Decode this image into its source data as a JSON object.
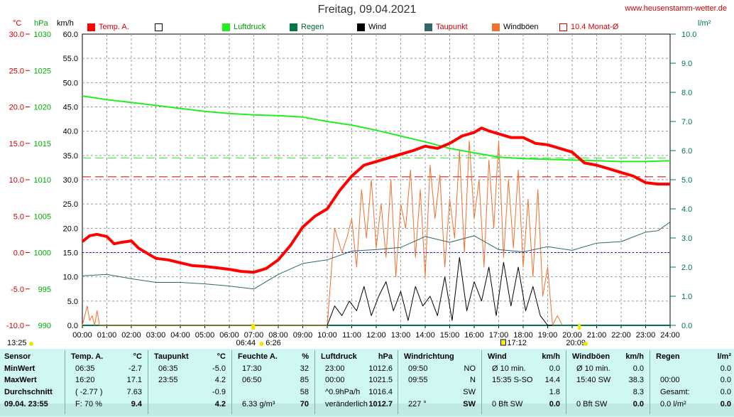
{
  "header": {
    "title": "Freitag, 09.04.2021",
    "site": "www.heusenstamm-wetter.de",
    "units": {
      "temp": "°C",
      "pressure": "hPa",
      "speed": "km/h",
      "rain": "l/m²"
    }
  },
  "legend": [
    {
      "label": "Temp. A.",
      "color": "#ff0000"
    },
    {
      "label": "",
      "color": "#ffffff"
    },
    {
      "label": "Luftdruck",
      "color": "#22ee22"
    },
    {
      "label": "Regen",
      "color": "#007744"
    },
    {
      "label": "Wind",
      "color": "#000000"
    },
    {
      "label": "Taupunkt",
      "color": "#336666"
    },
    {
      "label": "Windböen",
      "color": "#f07030"
    },
    {
      "label": "10.4 Monat-Ø",
      "color": "#d00000"
    }
  ],
  "colors": {
    "temp": "#ff0000",
    "pressure": "#22ee22",
    "rain": "#007744",
    "wind": "#000000",
    "dew": "#336666",
    "gust": "#f07030",
    "monthavg": "#d00000",
    "grid": "#9a9a9a",
    "bg_panel": "#cff7f3"
  },
  "chart_data": {
    "type": "line",
    "x_range": [
      0,
      24
    ],
    "x_tick_labels": [
      "00:00",
      "01:00",
      "02:00",
      "03:00",
      "04:00",
      "05:00",
      "06:00",
      "07:00",
      "08:00",
      "09:00",
      "10:00",
      "11:00",
      "12:00",
      "13:00",
      "14:00",
      "15:00",
      "16:00",
      "17:00",
      "18:00",
      "19:00",
      "20:00",
      "21:00",
      "22:00",
      "23:00",
      "24:00"
    ],
    "axes": {
      "temp_c": {
        "ticks": [
          "30.0",
          "25.0",
          "20.0",
          "15.0",
          "10.0",
          "5.0",
          "0.0",
          "-5.0",
          "-10.0"
        ],
        "range": [
          -10,
          30
        ]
      },
      "pressure_hpa": {
        "ticks": [
          "1030",
          "1025",
          "1020",
          "1015",
          "1010",
          "1005",
          "1000",
          "995",
          "990"
        ],
        "range": [
          990,
          1030
        ]
      },
      "speed_kmh": {
        "ticks": [
          "60.0",
          "55.0",
          "50.0",
          "45.0",
          "40.0",
          "35.0",
          "30.0",
          "25.0",
          "20.0",
          "15.0",
          "10.0",
          "5.0",
          "0.0"
        ],
        "range": [
          0,
          60
        ]
      },
      "rain_lm2": {
        "ticks": [
          "10.0",
          "9.0",
          "8.0",
          "7.0",
          "6.0",
          "5.0",
          "4.0",
          "3.0",
          "2.0",
          "1.0",
          "0.0"
        ],
        "range": [
          0,
          10
        ]
      }
    },
    "series": [
      {
        "name": "Temp. A.",
        "axis": "temp_c",
        "x": [
          0,
          0.3,
          0.6,
          1.0,
          1.3,
          1.6,
          2.0,
          2.3,
          2.7,
          3.0,
          3.5,
          4.0,
          4.5,
          5.0,
          5.5,
          6.0,
          6.5,
          7.0,
          7.5,
          8.0,
          8.5,
          9.0,
          9.5,
          10.0,
          10.5,
          11.0,
          11.5,
          12.0,
          12.5,
          13.0,
          13.5,
          14.0,
          14.5,
          15.0,
          15.5,
          16.0,
          16.3,
          16.6,
          17.0,
          17.5,
          18.0,
          18.5,
          19.0,
          19.5,
          20.0,
          20.5,
          21.0,
          21.5,
          22.0,
          22.5,
          23.0,
          23.5,
          24.0
        ],
        "y": [
          1.5,
          2.3,
          2.5,
          2.2,
          1.2,
          1.4,
          1.6,
          0.6,
          -0.2,
          -0.8,
          -1.0,
          -1.4,
          -1.8,
          -1.9,
          -2.1,
          -2.3,
          -2.6,
          -2.7,
          -2.2,
          -1.0,
          1.0,
          3.5,
          5.0,
          6.0,
          8.5,
          10.5,
          12.0,
          12.5,
          13.0,
          13.5,
          14.0,
          14.6,
          14.3,
          15.0,
          16.0,
          16.5,
          17.1,
          16.7,
          16.3,
          15.8,
          15.8,
          15.0,
          14.8,
          14.3,
          13.8,
          12.3,
          12.0,
          11.5,
          11.0,
          10.5,
          9.6,
          9.4,
          9.4
        ]
      },
      {
        "name": "Luftdruck",
        "axis": "pressure_hpa",
        "x": [
          0,
          1,
          2,
          3,
          4,
          5,
          6,
          7,
          8,
          9,
          10,
          11,
          12,
          13,
          14,
          15,
          16,
          17,
          18,
          19,
          20,
          21,
          22,
          23,
          24
        ],
        "y": [
          1021.5,
          1021.0,
          1020.6,
          1020.2,
          1019.8,
          1019.4,
          1019.1,
          1018.9,
          1018.8,
          1018.6,
          1018.0,
          1017.5,
          1016.8,
          1016.0,
          1015.2,
          1014.3,
          1013.7,
          1013.1,
          1012.9,
          1012.8,
          1012.7,
          1012.6,
          1012.5,
          1012.5,
          1012.6
        ]
      },
      {
        "name": "Taupunkt",
        "axis": "temp_c",
        "x": [
          0,
          1,
          2,
          3,
          4,
          5,
          6,
          7,
          8,
          9,
          10,
          11,
          12,
          13,
          14,
          15,
          16,
          17,
          18,
          19,
          20,
          21,
          22,
          23,
          23.5,
          24
        ],
        "y": [
          -3.2,
          -3.0,
          -3.6,
          -4.1,
          -4.1,
          -4.3,
          -4.6,
          -5.0,
          -3.0,
          -1.5,
          -1.0,
          0.2,
          0.4,
          0.7,
          2.2,
          1.4,
          2.3,
          0.4,
          0.1,
          0.8,
          0.3,
          1.3,
          1.5,
          2.8,
          3.0,
          4.2
        ]
      },
      {
        "name": "Windböen",
        "axis": "speed_kmh",
        "x": [
          0,
          0.2,
          0.3,
          0.4,
          0.5,
          0.6,
          0.7,
          10.0,
          10.3,
          10.6,
          10.8,
          11.0,
          11.2,
          11.4,
          11.6,
          11.8,
          12.0,
          12.2,
          12.4,
          12.6,
          12.8,
          13.0,
          13.2,
          13.4,
          13.6,
          13.8,
          14.0,
          14.2,
          14.4,
          14.6,
          14.8,
          15.0,
          15.2,
          15.4,
          15.6,
          15.8,
          16.0,
          16.2,
          16.4,
          16.6,
          16.8,
          17.0,
          17.2,
          17.4,
          17.6,
          17.8,
          18.0,
          18.2,
          18.4,
          18.6,
          18.8,
          19.0,
          19.2,
          19.4,
          19.6
        ],
        "y": [
          0,
          4,
          1,
          2,
          0,
          3,
          0,
          0,
          20,
          15,
          18,
          22,
          12,
          28,
          18,
          30,
          16,
          25,
          14,
          30,
          10,
          25,
          20,
          32,
          14,
          28,
          10,
          33,
          22,
          31,
          12,
          26,
          18,
          36,
          15,
          38,
          22,
          30,
          12,
          34,
          20,
          38,
          14,
          30,
          16,
          32,
          12,
          26,
          10,
          28,
          6,
          12,
          0,
          2,
          0
        ]
      },
      {
        "name": "Wind",
        "axis": "speed_kmh",
        "x": [
          10.0,
          10.3,
          10.6,
          10.9,
          11.2,
          11.5,
          11.8,
          12.1,
          12.4,
          12.7,
          13.0,
          13.3,
          13.6,
          13.9,
          14.2,
          14.5,
          14.8,
          15.1,
          15.4,
          15.7,
          16.0,
          16.3,
          16.6,
          16.9,
          17.2,
          17.5,
          17.8,
          18.1,
          18.4,
          18.7,
          19.0,
          19.2
        ],
        "y": [
          0,
          4,
          2,
          5,
          3,
          8,
          2,
          6,
          9,
          3,
          7,
          1,
          8,
          4,
          6,
          2,
          10,
          1,
          14,
          3,
          9,
          5,
          12,
          2,
          13,
          4,
          12,
          3,
          8,
          2,
          0,
          0
        ]
      },
      {
        "name": "Regen",
        "axis": "rain_lm2",
        "x": [
          0,
          24
        ],
        "y": [
          0,
          0
        ]
      }
    ],
    "monthavg_temp": 10.4,
    "reference_lines": [
      {
        "axis": "pressure_hpa",
        "value": 1013
      },
      {
        "axis": "temp_c",
        "value": 0
      }
    ],
    "markers": {
      "start_time": "13:25",
      "sunrise": "06:44",
      "sun_peak_time": "6:26",
      "solar_noon": "17:12",
      "sunset": "20:09"
    }
  },
  "table": {
    "row_labels": [
      "Sensor",
      "MinWert",
      "MaxWert",
      "Durchschnitt",
      "09.04. 23:55"
    ],
    "temp": {
      "head": "Temp. A.",
      "unit": "°C",
      "rows": [
        [
          "06:35",
          "-2.7"
        ],
        [
          "16:20",
          "17.1"
        ],
        [
          "( -2.77 )",
          "7.63"
        ],
        [
          "F: 70 %",
          "9.4"
        ]
      ]
    },
    "dew": {
      "head": "Taupunkt",
      "unit": "°C",
      "rows": [
        [
          "06:35",
          "-5.0"
        ],
        [
          "23:55",
          "4.2"
        ],
        [
          "",
          "-0.9"
        ],
        [
          "",
          "4.2"
        ]
      ]
    },
    "hum": {
      "head": "Feuchte A.",
      "unit": "%",
      "rows": [
        [
          "17:30",
          "32"
        ],
        [
          "06:50",
          "85"
        ],
        [
          "",
          "58"
        ],
        [
          "6.33 g/m³",
          "70"
        ]
      ]
    },
    "press": {
      "head": "Luftdruck",
      "unit": "hPa",
      "rows": [
        [
          "23:00",
          "1012.6"
        ],
        [
          "00:00",
          "1021.5"
        ],
        [
          "^0.9hPa/h",
          "1016.4"
        ],
        [
          "veränderlich",
          "1012.7"
        ]
      ]
    },
    "dir": {
      "head": "Windrichtung",
      "unit": "",
      "rows": [
        [
          "09:50",
          "NO"
        ],
        [
          "09:55",
          "N"
        ],
        [
          "",
          "SW"
        ],
        [
          "227 °",
          "SW"
        ]
      ]
    },
    "wind": {
      "head": "Wind",
      "unit": "km/h",
      "rows": [
        [
          "Ø 10 min.",
          "0.0"
        ],
        [
          "15:35    S-SO",
          "14.4"
        ],
        [
          "",
          "1.8"
        ],
        [
          "0 Bft SW",
          "0.0"
        ]
      ]
    },
    "gust": {
      "head": "Windböen",
      "unit": "km/h",
      "rows": [
        [
          "Ø 10 min.",
          "0.0"
        ],
        [
          "15:40    SW",
          "38.3"
        ],
        [
          "",
          "8.3"
        ],
        [
          "0 Bft SW",
          "0.0"
        ]
      ]
    },
    "rain": {
      "head": "Regen",
      "unit": "l/m²",
      "rows": [
        [
          "",
          "0.0"
        ],
        [
          "00:00",
          "0.0"
        ],
        [
          "Gesamt:",
          "0.0"
        ],
        [
          "0.0 l/m²",
          "0.0"
        ]
      ]
    }
  }
}
